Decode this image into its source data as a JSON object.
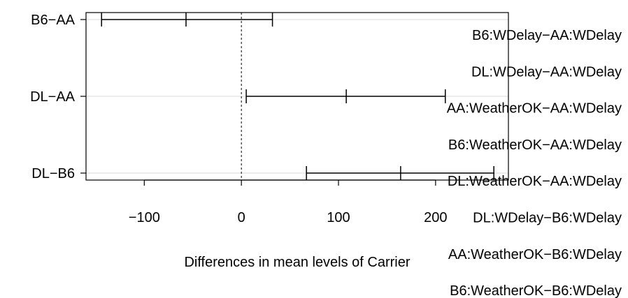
{
  "chart_data": {
    "type": "errorbar",
    "xlabel": "Differences in mean levels of Carrier",
    "xlim": [
      -160,
      275
    ],
    "x_ticks": [
      -100,
      0,
      100,
      200
    ],
    "x_tick_labels": [
      "−100",
      "0",
      "100",
      "200"
    ],
    "reference_line": 0,
    "grid": "horizontal",
    "rows": [
      {
        "label": "B6−AA",
        "lower": -144,
        "estimate": -57,
        "upper": 32
      },
      {
        "label": "DL−AA",
        "lower": 5,
        "estimate": 108,
        "upper": 210
      },
      {
        "label": "DL−B6",
        "lower": 67,
        "estimate": 164,
        "upper": 260
      }
    ],
    "overlay_labels": [
      "B6:WDelay−AA:WDelay",
      "DL:WDelay−AA:WDelay",
      "AA:WeatherOK−AA:WDelay",
      "B6:WeatherOK−AA:WDelay",
      "DL:WeatherOK−AA:WDelay",
      "DL:WDelay−B6:WDelay",
      "AA:WeatherOK−B6:WDelay",
      "B6:WeatherOK−B6:WDelay"
    ]
  }
}
